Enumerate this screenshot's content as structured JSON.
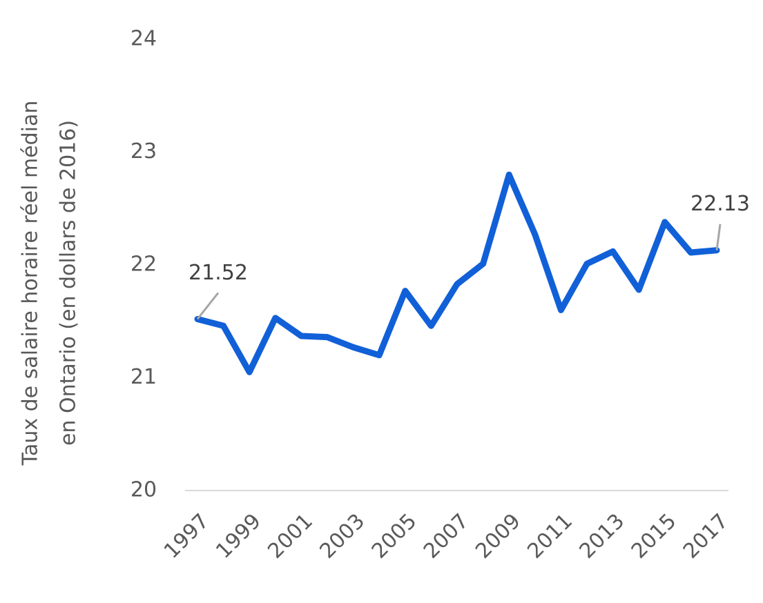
{
  "chart_data": {
    "type": "line",
    "ylabel": [
      "Taux de salaire horaire réel médian",
      "en Ontario (en dollars de 2016)"
    ],
    "categories": [
      "1997",
      null,
      "1999",
      null,
      "2001",
      null,
      "2003",
      null,
      "2005",
      null,
      "2007",
      null,
      "2009",
      null,
      "2011",
      null,
      "2013",
      null,
      "2015",
      null,
      "2017"
    ],
    "series": [
      {
        "color": "#1160d8",
        "values": [
          21.52,
          21.46,
          21.05,
          21.53,
          21.37,
          21.36,
          21.27,
          21.2,
          21.77,
          21.46,
          21.83,
          22.01,
          22.8,
          22.27,
          21.6,
          22.01,
          22.12,
          21.78,
          22.38,
          22.11,
          22.13
        ],
        "value_labels": [
          "21.52",
          null,
          null,
          null,
          null,
          null,
          null,
          null,
          null,
          null,
          null,
          null,
          null,
          null,
          null,
          null,
          null,
          null,
          null,
          null,
          "22.13"
        ]
      }
    ],
    "ylim": [
      20,
      24
    ],
    "yticks": [
      20,
      21,
      22,
      23,
      24
    ],
    "grid": false
  }
}
